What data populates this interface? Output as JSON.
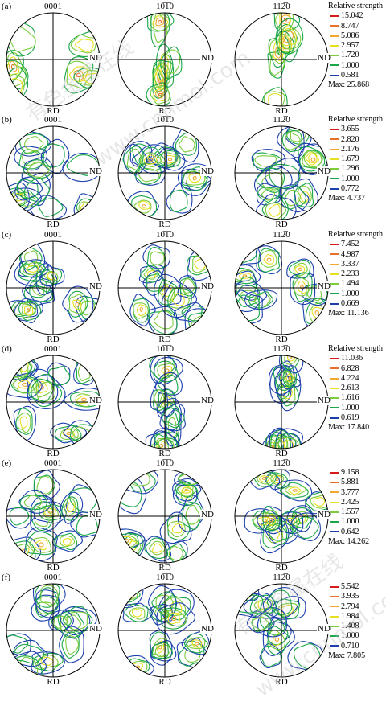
{
  "rows": [
    {
      "label": "(a)",
      "figures": [
        {
          "title": "0001",
          "rd": "RD",
          "nd": "ND"
        },
        {
          "title": "10̅1̅0",
          "rd": "RD",
          "nd": "ND"
        },
        {
          "title": "112̅0",
          "rd": "RD",
          "nd": "ND"
        }
      ],
      "legend": {
        "title": "Relative strength",
        "levels": [
          "15.042",
          "8.747",
          "5.086",
          "2.957",
          "1.720",
          "1.000",
          "0.581"
        ],
        "max": "Max: 25.868"
      }
    },
    {
      "label": "(b)",
      "figures": [
        {
          "title": "0001",
          "rd": "RD",
          "nd": "ND"
        },
        {
          "title": "10̅1̅0",
          "rd": "RD",
          "nd": "ND"
        },
        {
          "title": "112̅0",
          "rd": "RD",
          "nd": "ND"
        }
      ],
      "legend": {
        "title": "Relative strength",
        "levels": [
          "3.655",
          "2.820",
          "2.176",
          "1.679",
          "1.296",
          "1.000",
          "0.772"
        ],
        "max": "Max: 4.737"
      }
    },
    {
      "label": "(c)",
      "figures": [
        {
          "title": "0001",
          "rd": "RD",
          "nd": "ND"
        },
        {
          "title": "10̅1̅0",
          "rd": "RD",
          "nd": "ND"
        },
        {
          "title": "112̅0",
          "rd": "RD",
          "nd": "ND"
        }
      ],
      "legend": {
        "title": "Relative strength",
        "levels": [
          "7.452",
          "4.987",
          "3.337",
          "2.233",
          "1.494",
          "1.000",
          "0.669"
        ],
        "max": "Max: 11.136"
      }
    },
    {
      "label": "(d)",
      "figures": [
        {
          "title": "0001",
          "rd": "RD",
          "nd": "ND"
        },
        {
          "title": "10̅1̅0",
          "rd": "RD",
          "nd": "ND"
        },
        {
          "title": "112̅0",
          "rd": "RD",
          "nd": "ND"
        }
      ],
      "legend": {
        "title": "Relative strength",
        "levels": [
          "11.036",
          "6.828",
          "4.224",
          "2.613",
          "1.616",
          "1.000",
          "0.619"
        ],
        "max": "Max: 17.840"
      }
    },
    {
      "label": "(e)",
      "figures": [
        {
          "title": "0001",
          "rd": "RD",
          "nd": "ND"
        },
        {
          "title": "10̅1̅0",
          "rd": "RD",
          "nd": "ND"
        },
        {
          "title": "112̅0",
          "rd": "RD",
          "nd": "ND"
        }
      ],
      "legend": {
        "title": "",
        "levels": [
          "9.158",
          "5.881",
          "3.777",
          "2.425",
          "1.557",
          "1.000",
          "0.642"
        ],
        "max": "Max: 14.262"
      }
    },
    {
      "label": "(f)",
      "figures": [
        {
          "title": "0001",
          "rd": "RD",
          "nd": "ND"
        },
        {
          "title": "10̅1̅0",
          "rd": "RD",
          "nd": "ND"
        },
        {
          "title": "112̅0",
          "rd": "RD",
          "nd": "ND"
        }
      ],
      "legend": {
        "title": "",
        "levels": [
          "5.542",
          "3.935",
          "2.794",
          "1.984",
          "1.408",
          "1.000",
          "0.710"
        ],
        "max": "Max: 7.805"
      }
    }
  ],
  "level_colors": [
    "#d7191c",
    "#e8702a",
    "#f0a830",
    "#e6e020",
    "#7ccd3c",
    "#1aa64a",
    "#1c3fae"
  ],
  "watermarks": [
    "有色金属在线",
    "www.cnnmol.com"
  ]
}
